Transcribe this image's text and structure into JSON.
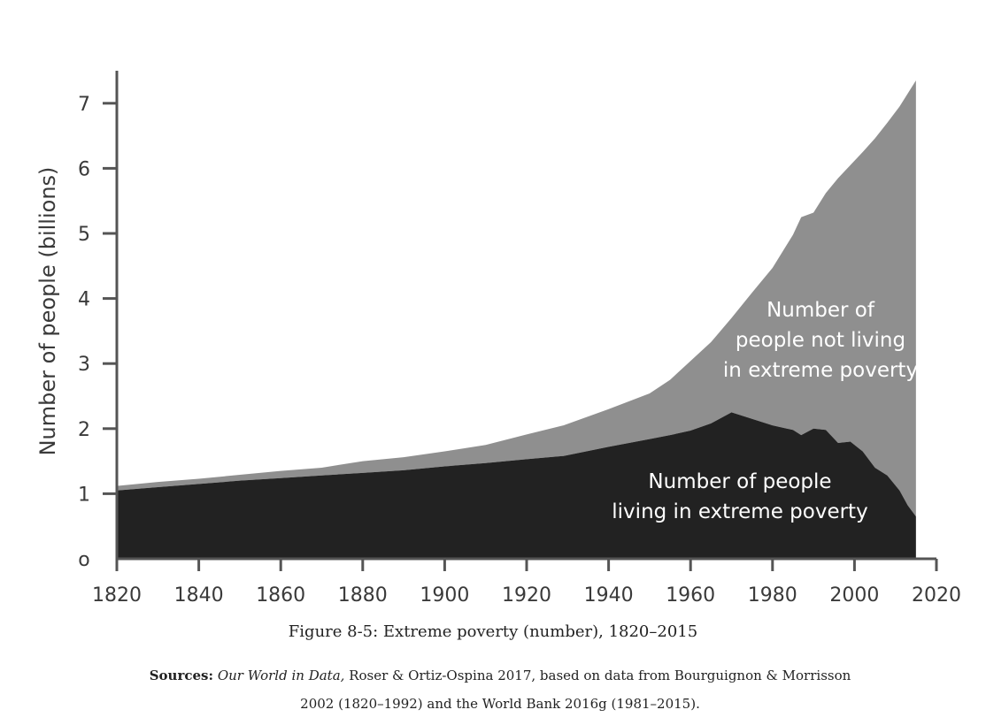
{
  "chart_data": {
    "type": "area",
    "stacked": true,
    "ylabel": "Number of people (billions)",
    "xlabel": "",
    "xlim": [
      1820,
      2020
    ],
    "ylim": [
      0,
      7.5
    ],
    "x_ticks": [
      1820,
      1840,
      1860,
      1880,
      1900,
      1920,
      1940,
      1960,
      1980,
      2000,
      2020
    ],
    "y_ticks": [
      0,
      1,
      2,
      3,
      4,
      5,
      6,
      7
    ],
    "y_tick_labels": [
      "o",
      "1",
      "2",
      "3",
      "4",
      "5",
      "6",
      "7"
    ],
    "grid": false,
    "legend": "none",
    "series": [
      {
        "name": "Number of people living in extreme poverty",
        "label_lines": [
          "Number of people",
          "living in extreme poverty"
        ],
        "color": "#222222",
        "x": [
          1820,
          1830,
          1840,
          1850,
          1860,
          1870,
          1880,
          1890,
          1900,
          1910,
          1920,
          1929,
          1940,
          1950,
          1955,
          1960,
          1965,
          1970,
          1975,
          1980,
          1985,
          1987,
          1990,
          1993,
          1996,
          1999,
          2002,
          2005,
          2008,
          2011,
          2013,
          2015
        ],
        "values": [
          1.05,
          1.1,
          1.15,
          1.2,
          1.24,
          1.28,
          1.32,
          1.36,
          1.42,
          1.47,
          1.53,
          1.58,
          1.72,
          1.84,
          1.9,
          1.97,
          2.08,
          2.25,
          2.15,
          2.05,
          1.98,
          1.9,
          2.0,
          1.98,
          1.78,
          1.8,
          1.65,
          1.4,
          1.28,
          1.05,
          0.82,
          0.65
        ]
      },
      {
        "name": "Number of people not living in extreme poverty",
        "label_lines": [
          "Number of",
          "people not living",
          "in extreme poverty"
        ],
        "color": "#8f8f8f",
        "x": [
          1820,
          1830,
          1840,
          1850,
          1860,
          1870,
          1880,
          1890,
          1900,
          1910,
          1920,
          1929,
          1940,
          1950,
          1955,
          1960,
          1965,
          1970,
          1975,
          1980,
          1985,
          1987,
          1990,
          1993,
          1996,
          1999,
          2002,
          2005,
          2008,
          2011,
          2013,
          2015
        ],
        "values": [
          0.07,
          0.08,
          0.08,
          0.09,
          0.11,
          0.12,
          0.18,
          0.2,
          0.23,
          0.28,
          0.38,
          0.47,
          0.58,
          0.7,
          0.85,
          1.07,
          1.25,
          1.45,
          1.94,
          2.42,
          3.0,
          3.35,
          3.32,
          3.64,
          4.07,
          4.25,
          4.6,
          5.06,
          5.42,
          5.9,
          6.33,
          6.7
        ]
      }
    ]
  },
  "caption": "Figure 8-5: Extreme poverty (number), 1820–2015",
  "sources": {
    "label": "Sources:",
    "publication": "Our World in Data,",
    "text_line1": "Roser & Ortiz-Ospina 2017, based on data from Bourguignon & Morrisson",
    "text_line2": "2002 (1820–1992) and the World Bank 2016g (1981–2015)."
  }
}
